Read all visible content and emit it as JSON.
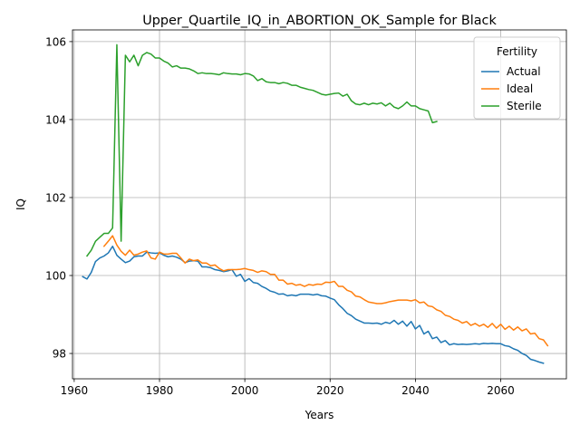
{
  "chart_data": {
    "type": "line",
    "title": "Upper_Quartile_IQ_in_ABORTION_OK_Sample for Black",
    "xlabel": "Years",
    "ylabel": "IQ",
    "xlim": [
      1959.6,
      2075.4
    ],
    "ylim": [
      97.35,
      106.3
    ],
    "xticks": [
      1960,
      1980,
      2000,
      2020,
      2040,
      2060
    ],
    "yticks": [
      98,
      100,
      102,
      104,
      106
    ],
    "grid": true,
    "legend": {
      "title": "Fertility",
      "placement": "top-right"
    },
    "series": [
      {
        "name": "Actual",
        "color": "#1f77b4",
        "points": [
          [
            1962,
            99.97
          ],
          [
            1963,
            99.91
          ],
          [
            1964,
            100.08
          ],
          [
            1965,
            100.36
          ],
          [
            1966,
            100.45
          ],
          [
            1967,
            100.5
          ],
          [
            1968,
            100.58
          ],
          [
            1969,
            100.75
          ],
          [
            1970,
            100.52
          ],
          [
            1971,
            100.42
          ],
          [
            1972,
            100.33
          ],
          [
            1973,
            100.37
          ],
          [
            1974,
            100.48
          ],
          [
            1975,
            100.5
          ],
          [
            1976,
            100.5
          ],
          [
            1977,
            100.6
          ],
          [
            1978,
            100.58
          ],
          [
            1979,
            100.57
          ],
          [
            1980,
            100.58
          ],
          [
            1981,
            100.52
          ],
          [
            1982,
            100.48
          ],
          [
            1983,
            100.5
          ],
          [
            1984,
            100.47
          ],
          [
            1985,
            100.42
          ],
          [
            1986,
            100.33
          ],
          [
            1987,
            100.37
          ],
          [
            1988,
            100.38
          ],
          [
            1989,
            100.37
          ],
          [
            1990,
            100.22
          ],
          [
            1991,
            100.22
          ],
          [
            1992,
            100.2
          ],
          [
            1993,
            100.15
          ],
          [
            1994,
            100.13
          ],
          [
            1995,
            100.1
          ],
          [
            1996,
            100.12
          ],
          [
            1997,
            100.15
          ],
          [
            1998,
            99.98
          ],
          [
            1999,
            100.03
          ],
          [
            2000,
            99.85
          ],
          [
            2001,
            99.92
          ],
          [
            2002,
            99.82
          ],
          [
            2003,
            99.8
          ],
          [
            2004,
            99.72
          ],
          [
            2005,
            99.67
          ],
          [
            2006,
            99.6
          ],
          [
            2007,
            99.57
          ],
          [
            2008,
            99.52
          ],
          [
            2009,
            99.53
          ],
          [
            2010,
            99.48
          ],
          [
            2011,
            99.5
          ],
          [
            2012,
            99.48
          ],
          [
            2013,
            99.52
          ],
          [
            2014,
            99.52
          ],
          [
            2015,
            99.52
          ],
          [
            2016,
            99.5
          ],
          [
            2017,
            99.52
          ],
          [
            2018,
            99.48
          ],
          [
            2019,
            99.47
          ],
          [
            2020,
            99.42
          ],
          [
            2021,
            99.38
          ],
          [
            2022,
            99.25
          ],
          [
            2023,
            99.15
          ],
          [
            2024,
            99.03
          ],
          [
            2025,
            98.97
          ],
          [
            2026,
            98.88
          ],
          [
            2027,
            98.83
          ],
          [
            2028,
            98.78
          ],
          [
            2029,
            98.78
          ],
          [
            2030,
            98.77
          ],
          [
            2031,
            98.78
          ],
          [
            2032,
            98.75
          ],
          [
            2033,
            98.8
          ],
          [
            2034,
            98.77
          ],
          [
            2035,
            98.85
          ],
          [
            2036,
            98.75
          ],
          [
            2037,
            98.83
          ],
          [
            2038,
            98.7
          ],
          [
            2039,
            98.82
          ],
          [
            2040,
            98.63
          ],
          [
            2041,
            98.72
          ],
          [
            2042,
            98.5
          ],
          [
            2043,
            98.57
          ],
          [
            2044,
            98.38
          ],
          [
            2045,
            98.42
          ],
          [
            2046,
            98.28
          ],
          [
            2047,
            98.33
          ],
          [
            2048,
            98.22
          ],
          [
            2049,
            98.25
          ],
          [
            2050,
            98.23
          ],
          [
            2051,
            98.24
          ],
          [
            2052,
            98.23
          ],
          [
            2053,
            98.24
          ],
          [
            2054,
            98.25
          ],
          [
            2055,
            98.24
          ],
          [
            2056,
            98.26
          ],
          [
            2057,
            98.25
          ],
          [
            2058,
            98.26
          ],
          [
            2059,
            98.25
          ],
          [
            2060,
            98.25
          ],
          [
            2061,
            98.2
          ],
          [
            2062,
            98.18
          ],
          [
            2063,
            98.12
          ],
          [
            2064,
            98.08
          ],
          [
            2065,
            98.0
          ],
          [
            2066,
            97.95
          ],
          [
            2067,
            97.85
          ],
          [
            2068,
            97.82
          ],
          [
            2069,
            97.78
          ],
          [
            2070,
            97.75
          ]
        ]
      },
      {
        "name": "Ideal",
        "color": "#ff7f0e",
        "points": [
          [
            1967,
            100.75
          ],
          [
            1968,
            100.88
          ],
          [
            1969,
            101.02
          ],
          [
            1970,
            100.78
          ],
          [
            1971,
            100.62
          ],
          [
            1972,
            100.52
          ],
          [
            1973,
            100.65
          ],
          [
            1974,
            100.52
          ],
          [
            1975,
            100.55
          ],
          [
            1976,
            100.6
          ],
          [
            1977,
            100.63
          ],
          [
            1978,
            100.45
          ],
          [
            1979,
            100.42
          ],
          [
            1980,
            100.6
          ],
          [
            1981,
            100.55
          ],
          [
            1982,
            100.55
          ],
          [
            1983,
            100.57
          ],
          [
            1984,
            100.57
          ],
          [
            1985,
            100.45
          ],
          [
            1986,
            100.32
          ],
          [
            1987,
            100.42
          ],
          [
            1988,
            100.38
          ],
          [
            1989,
            100.4
          ],
          [
            1990,
            100.32
          ],
          [
            1991,
            100.32
          ],
          [
            1992,
            100.25
          ],
          [
            1993,
            100.27
          ],
          [
            1994,
            100.18
          ],
          [
            1995,
            100.12
          ],
          [
            1996,
            100.15
          ],
          [
            1997,
            100.15
          ],
          [
            1998,
            100.15
          ],
          [
            1999,
            100.16
          ],
          [
            2000,
            100.18
          ],
          [
            2001,
            100.15
          ],
          [
            2002,
            100.13
          ],
          [
            2003,
            100.08
          ],
          [
            2004,
            100.12
          ],
          [
            2005,
            100.1
          ],
          [
            2006,
            100.03
          ],
          [
            2007,
            100.03
          ],
          [
            2008,
            99.88
          ],
          [
            2009,
            99.88
          ],
          [
            2010,
            99.78
          ],
          [
            2011,
            99.8
          ],
          [
            2012,
            99.75
          ],
          [
            2013,
            99.77
          ],
          [
            2014,
            99.72
          ],
          [
            2015,
            99.77
          ],
          [
            2016,
            99.75
          ],
          [
            2017,
            99.78
          ],
          [
            2018,
            99.77
          ],
          [
            2019,
            99.83
          ],
          [
            2020,
            99.82
          ],
          [
            2021,
            99.85
          ],
          [
            2022,
            99.72
          ],
          [
            2023,
            99.72
          ],
          [
            2024,
            99.62
          ],
          [
            2025,
            99.58
          ],
          [
            2026,
            99.47
          ],
          [
            2027,
            99.45
          ],
          [
            2028,
            99.38
          ],
          [
            2029,
            99.32
          ],
          [
            2030,
            99.3
          ],
          [
            2031,
            99.28
          ],
          [
            2032,
            99.28
          ],
          [
            2033,
            99.3
          ],
          [
            2034,
            99.33
          ],
          [
            2035,
            99.35
          ],
          [
            2036,
            99.37
          ],
          [
            2037,
            99.37
          ],
          [
            2038,
            99.37
          ],
          [
            2039,
            99.35
          ],
          [
            2040,
            99.38
          ],
          [
            2041,
            99.3
          ],
          [
            2042,
            99.32
          ],
          [
            2043,
            99.22
          ],
          [
            2044,
            99.2
          ],
          [
            2045,
            99.12
          ],
          [
            2046,
            99.08
          ],
          [
            2047,
            98.98
          ],
          [
            2048,
            98.95
          ],
          [
            2049,
            98.88
          ],
          [
            2050,
            98.85
          ],
          [
            2051,
            98.78
          ],
          [
            2052,
            98.82
          ],
          [
            2053,
            98.72
          ],
          [
            2054,
            98.77
          ],
          [
            2055,
            98.7
          ],
          [
            2056,
            98.75
          ],
          [
            2057,
            98.67
          ],
          [
            2058,
            98.77
          ],
          [
            2059,
            98.65
          ],
          [
            2060,
            98.75
          ],
          [
            2061,
            98.62
          ],
          [
            2062,
            98.7
          ],
          [
            2063,
            98.6
          ],
          [
            2064,
            98.68
          ],
          [
            2065,
            98.58
          ],
          [
            2066,
            98.63
          ],
          [
            2067,
            98.5
          ],
          [
            2068,
            98.52
          ],
          [
            2069,
            98.38
          ],
          [
            2070,
            98.35
          ],
          [
            2071,
            98.2
          ]
        ]
      },
      {
        "name": "Sterile",
        "color": "#2ca02c",
        "points": [
          [
            1963,
            100.5
          ],
          [
            1964,
            100.65
          ],
          [
            1965,
            100.88
          ],
          [
            1966,
            100.98
          ],
          [
            1967,
            101.08
          ],
          [
            1968,
            101.08
          ],
          [
            1969,
            101.22
          ],
          [
            1970,
            105.92
          ],
          [
            1971,
            100.88
          ],
          [
            1972,
            105.65
          ],
          [
            1973,
            105.48
          ],
          [
            1974,
            105.65
          ],
          [
            1975,
            105.38
          ],
          [
            1976,
            105.65
          ],
          [
            1977,
            105.72
          ],
          [
            1978,
            105.68
          ],
          [
            1979,
            105.58
          ],
          [
            1980,
            105.58
          ],
          [
            1981,
            105.5
          ],
          [
            1982,
            105.45
          ],
          [
            1983,
            105.35
          ],
          [
            1984,
            105.38
          ],
          [
            1985,
            105.32
          ],
          [
            1986,
            105.32
          ],
          [
            1987,
            105.3
          ],
          [
            1988,
            105.25
          ],
          [
            1989,
            105.18
          ],
          [
            1990,
            105.2
          ],
          [
            1991,
            105.18
          ],
          [
            1992,
            105.18
          ],
          [
            1993,
            105.17
          ],
          [
            1994,
            105.15
          ],
          [
            1995,
            105.2
          ],
          [
            1996,
            105.18
          ],
          [
            1997,
            105.17
          ],
          [
            1998,
            105.17
          ],
          [
            1999,
            105.15
          ],
          [
            2000,
            105.18
          ],
          [
            2001,
            105.17
          ],
          [
            2002,
            105.12
          ],
          [
            2003,
            105.0
          ],
          [
            2004,
            105.05
          ],
          [
            2005,
            104.97
          ],
          [
            2006,
            104.95
          ],
          [
            2007,
            104.95
          ],
          [
            2008,
            104.92
          ],
          [
            2009,
            104.95
          ],
          [
            2010,
            104.93
          ],
          [
            2011,
            104.88
          ],
          [
            2012,
            104.88
          ],
          [
            2013,
            104.83
          ],
          [
            2014,
            104.8
          ],
          [
            2015,
            104.77
          ],
          [
            2016,
            104.75
          ],
          [
            2017,
            104.7
          ],
          [
            2018,
            104.65
          ],
          [
            2019,
            104.63
          ],
          [
            2020,
            104.65
          ],
          [
            2021,
            104.67
          ],
          [
            2022,
            104.68
          ],
          [
            2023,
            104.6
          ],
          [
            2024,
            104.65
          ],
          [
            2025,
            104.48
          ],
          [
            2026,
            104.4
          ],
          [
            2027,
            104.38
          ],
          [
            2028,
            104.42
          ],
          [
            2029,
            104.38
          ],
          [
            2030,
            104.42
          ],
          [
            2031,
            104.4
          ],
          [
            2032,
            104.43
          ],
          [
            2033,
            104.35
          ],
          [
            2034,
            104.42
          ],
          [
            2035,
            104.32
          ],
          [
            2036,
            104.28
          ],
          [
            2037,
            104.35
          ],
          [
            2038,
            104.45
          ],
          [
            2039,
            104.35
          ],
          [
            2040,
            104.35
          ],
          [
            2041,
            104.28
          ],
          [
            2042,
            104.25
          ],
          [
            2043,
            104.22
          ],
          [
            2044,
            103.92
          ],
          [
            2045,
            103.95
          ]
        ]
      }
    ]
  }
}
